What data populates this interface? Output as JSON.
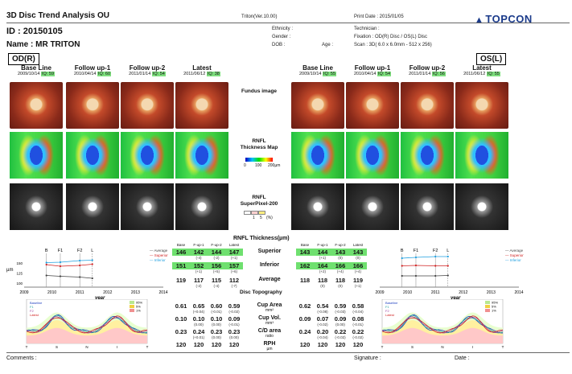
{
  "header": {
    "title": "3D Disc Trend Analysis OU",
    "id": "ID : 20150105",
    "name": "Name : MR   TRITON",
    "version": "Triton(Ver.10.00)",
    "ethnicity": "Ethnicity :",
    "gender": "Gender :",
    "dob": "DOB :",
    "age": "Age :",
    "print_date": "Print Date : 2015/01/05",
    "technician": "Technician :",
    "fixation": "Fixation : OD(R) Disc / OS(L) Disc",
    "scan": "Scan : 3D( 6.0 x 6.0mm - 512 x 256)",
    "logo": "TOPCON",
    "logo_icon": "topcon-logo-icon"
  },
  "od": {
    "label": "OD(R)",
    "visits": [
      {
        "title": "Base Line",
        "date": "2009/10/14",
        "iq": "IQ: 59"
      },
      {
        "title": "Follow up-1",
        "date": "2010/04/14",
        "iq": "IQ: 60"
      },
      {
        "title": "Follow up-2",
        "date": "2011/01/14",
        "iq": "IQ: 54"
      },
      {
        "title": "Latest",
        "date": "2011/06/12",
        "iq": "IQ: 38"
      }
    ]
  },
  "os": {
    "label": "OS(L)",
    "visits": [
      {
        "title": "Base Line",
        "date": "2009/10/14",
        "iq": "IQ: 55"
      },
      {
        "title": "Follow up-1",
        "date": "2010/04/14",
        "iq": "IQ: 54"
      },
      {
        "title": "Follow up-2",
        "date": "2011/01/14",
        "iq": "IQ: 56"
      },
      {
        "title": "Latest",
        "date": "2011/06/12",
        "iq": "IQ: 55"
      }
    ]
  },
  "middle": {
    "fundus": "Fundus image",
    "rnfl_map": "RNFL\nThickness Map",
    "scale_0": "0",
    "scale_100": "100",
    "scale_200": "200µm",
    "superpixel": "RNFL\nSuperPixel-200",
    "sp_1": "1",
    "sp_5": "5",
    "sp_pct": "(%)"
  },
  "table": {
    "title": "RNFL Thickness(µm)",
    "col_headers": [
      "Base",
      "F-up-1",
      "F-up-2",
      "Latest"
    ],
    "rows": [
      {
        "label": "Superior",
        "unit": "",
        "od": [
          "146",
          "142",
          "144",
          "147"
        ],
        "od_sub": [
          "",
          "(-4)",
          "(-2)",
          "(+1)"
        ],
        "os": [
          "143",
          "144",
          "143",
          "143"
        ],
        "os_sub": [
          "",
          "(+1)",
          "(0)",
          "(0)"
        ],
        "green": true
      },
      {
        "label": "Inferior",
        "unit": "",
        "od": [
          "151",
          "152",
          "156",
          "157"
        ],
        "od_sub": [
          "",
          "(+1)",
          "(+5)",
          "(+6)"
        ],
        "os": [
          "162",
          "164",
          "166",
          "166"
        ],
        "os_sub": [
          "",
          "(+2)",
          "(+4)",
          "(+4)"
        ],
        "green": true
      },
      {
        "label": "Average",
        "unit": "",
        "od": [
          "119",
          "117",
          "115",
          "112"
        ],
        "od_sub": [
          "",
          "(-2)",
          "(-4)",
          "(-7)"
        ],
        "os": [
          "118",
          "118",
          "118",
          "119"
        ],
        "os_sub": [
          "",
          "(0)",
          "(0)",
          "(+1)"
        ],
        "green": false
      }
    ],
    "topo_title": "Disc Topography",
    "topo_rows": [
      {
        "label": "Cup Area",
        "unit": "mm²",
        "od": [
          "0.61",
          "0.65",
          "0.60",
          "0.59"
        ],
        "od_sub": [
          "",
          "(+0.04)",
          "(-0.01)",
          "(-0.02)"
        ],
        "os": [
          "0.62",
          "0.54",
          "0.59",
          "0.58"
        ],
        "os_sub": [
          "",
          "(-0.08)",
          "(-0.03)",
          "(-0.04)"
        ]
      },
      {
        "label": "Cup Vol.",
        "unit": "mm³",
        "od": [
          "0.10",
          "0.10",
          "0.10",
          "0.09"
        ],
        "od_sub": [
          "",
          "(0.00)",
          "(0.00)",
          "(-0.01)"
        ],
        "os": [
          "0.09",
          "0.07",
          "0.09",
          "0.08"
        ],
        "os_sub": [
          "",
          "(-0.02)",
          "(0.00)",
          "(-0.01)"
        ]
      },
      {
        "label": "C/D area",
        "unit": "ratio",
        "od": [
          "0.23",
          "0.24",
          "0.23",
          "0.23"
        ],
        "od_sub": [
          "",
          "(+0.01)",
          "(0.00)",
          "(0.00)"
        ],
        "os": [
          "0.24",
          "0.20",
          "0.22",
          "0.22"
        ],
        "os_sub": [
          "",
          "(-0.04)",
          "(-0.02)",
          "(-0.02)"
        ]
      },
      {
        "label": "RPH",
        "unit": "µm",
        "od": [
          "120",
          "120",
          "120",
          "120"
        ],
        "od_sub": [
          "",
          "",
          "",
          ""
        ],
        "os": [
          "120",
          "120",
          "120",
          "120"
        ],
        "os_sub": [
          "",
          "",
          "",
          ""
        ]
      }
    ]
  },
  "footer": {
    "comments": "Comments :",
    "signature": "Signature :",
    "date": "Date :"
  },
  "chart_data": [
    {
      "type": "line",
      "eye": "OD",
      "x_ticks": [
        "2009",
        "2010",
        "2011",
        "2012",
        "2013",
        "2014"
      ],
      "xlabel": "year",
      "ylabel": "µm",
      "y_ticks": [
        "150",
        "125",
        "100"
      ],
      "ylim": [
        100,
        150
      ],
      "markers": [
        "B",
        "F1",
        "F2",
        "L"
      ],
      "marker_x": [
        2009.8,
        2010.3,
        2011.0,
        2011.45
      ],
      "series": [
        {
          "name": "Average",
          "color": "#444444",
          "x": [
            2009.8,
            2010.3,
            2011.0,
            2011.45
          ],
          "y": [
            119,
            117,
            115,
            112
          ]
        },
        {
          "name": "Superior",
          "color": "#d02020",
          "x": [
            2009.8,
            2010.3,
            2011.0,
            2011.45
          ],
          "y": [
            146,
            142,
            144,
            147
          ]
        },
        {
          "name": "Inferior",
          "color": "#20a0e0",
          "x": [
            2009.8,
            2010.3,
            2011.0,
            2011.45
          ],
          "y": [
            151,
            152,
            156,
            157
          ]
        }
      ]
    },
    {
      "type": "line",
      "eye": "OS",
      "x_ticks": [
        "2009",
        "2010",
        "2011",
        "2012",
        "2013",
        "2014"
      ],
      "xlabel": "year",
      "ylabel": "",
      "y_ticks": [],
      "ylim": [
        100,
        150
      ],
      "markers": [
        "B",
        "F1",
        "F2",
        "L"
      ],
      "marker_x": [
        2009.8,
        2010.3,
        2011.0,
        2011.45
      ],
      "series": [
        {
          "name": "Average",
          "color": "#444444",
          "x": [
            2009.8,
            2010.3,
            2011.0,
            2011.45
          ],
          "y": [
            118,
            118,
            118,
            119
          ]
        },
        {
          "name": "Superior",
          "color": "#d02020",
          "x": [
            2009.8,
            2010.3,
            2011.0,
            2011.45
          ],
          "y": [
            143,
            144,
            143,
            143
          ]
        },
        {
          "name": "Inferior",
          "color": "#20a0e0",
          "x": [
            2009.8,
            2010.3,
            2011.0,
            2011.45
          ],
          "y": [
            162,
            164,
            166,
            166
          ]
        }
      ]
    },
    {
      "type": "area",
      "eye": "OD",
      "legend": [
        "Baseline",
        "F1",
        "F2",
        "Latest"
      ],
      "pct_legend": [
        "95%",
        "5%",
        "1%"
      ],
      "x_ticks": [
        "T",
        "S",
        "N",
        "I",
        "T"
      ]
    },
    {
      "type": "area",
      "eye": "OS",
      "legend": [
        "Baseline",
        "F1",
        "F2",
        "Latest"
      ],
      "pct_legend": [
        "95%",
        "5%",
        "1%"
      ],
      "x_ticks": [
        "T",
        "S",
        "N",
        "I",
        "T"
      ]
    }
  ]
}
